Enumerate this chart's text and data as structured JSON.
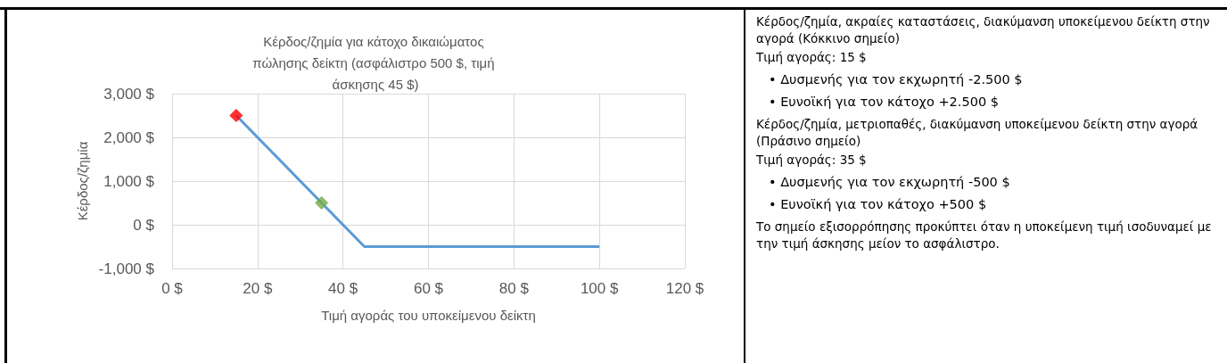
{
  "chart_data": [
    {
      "type": "line",
      "title": "Κέρδος/ζημία για κάτοχο δικαιώματος πώλησης δείκτη (ασφάλιστρο 500 $, τιμή άσκησης 45 $)",
      "xlabel": "Τιμή αγοράς του υποκείμενου δείκτη",
      "ylabel": "Κέρδος/ζημία",
      "series": [
        {
          "color": "#5b9bd5",
          "x": [
            15,
            45,
            100
          ],
          "values": [
            2500,
            -500,
            -500
          ],
          "marker": "none"
        },
        {
          "type": "scatter",
          "color": "#ff0000",
          "x": [
            15
          ],
          "values": [
            2500
          ],
          "marker": "diamond"
        },
        {
          "type": "scatter",
          "color": "#70ad47",
          "x": [
            35
          ],
          "values": [
            500
          ],
          "marker": "diamond"
        }
      ],
      "xlim": [
        0,
        120
      ],
      "xticks": [
        {
          "value": 0,
          "label": "0 $"
        },
        {
          "value": 20,
          "label": "20 $"
        },
        {
          "value": 40,
          "label": "40 $"
        },
        {
          "value": 60,
          "label": "60 $"
        },
        {
          "value": 80,
          "label": "80 $"
        },
        {
          "value": 100,
          "label": "100 $"
        },
        {
          "value": 120,
          "label": "120 $"
        }
      ],
      "ylim": [
        -1000,
        3000
      ],
      "yticks": [
        {
          "value": -1000,
          "label": "-1,000 $"
        },
        {
          "value": 0,
          "label": "0 $"
        },
        {
          "value": 1000,
          "label": "1,000 $"
        },
        {
          "value": 2000,
          "label": "2,000 $"
        },
        {
          "value": 3000,
          "label": "3,000 $"
        }
      ],
      "grid": true
    },
    {
      "type": "other",
      "annotations": [
        "Κέρδος/ζημία, ακραίες καταστάσεις, διακύμανση υποκείμενου δείκτη στην αγορά (Κόκκινο σημείο)",
        "Τιμή αγοράς: 15 $",
        "• Δυσμενής για τον εκχωρητή -2.500 $",
        "• Ευνοϊκή για τον κάτοχο +2.500 $",
        "Κέρδος/ζημία, μετριοπαθές, διακύμανση υποκείμενου δείκτη στην αγορά (Πράσινο σημείο)",
        "Τιμή αγοράς: 35 $",
        "• Δυσμενής για τον εκχωρητή -500 $",
        "• Ευνοϊκή για τον κάτοχο +500 $",
        "Το σημείο εξισορρόπησης προκύπτει όταν η υποκείμενη τιμή ισοδυναμεί με την τιμή άσκησης μείον το ασφάλιστρο."
      ]
    }
  ]
}
